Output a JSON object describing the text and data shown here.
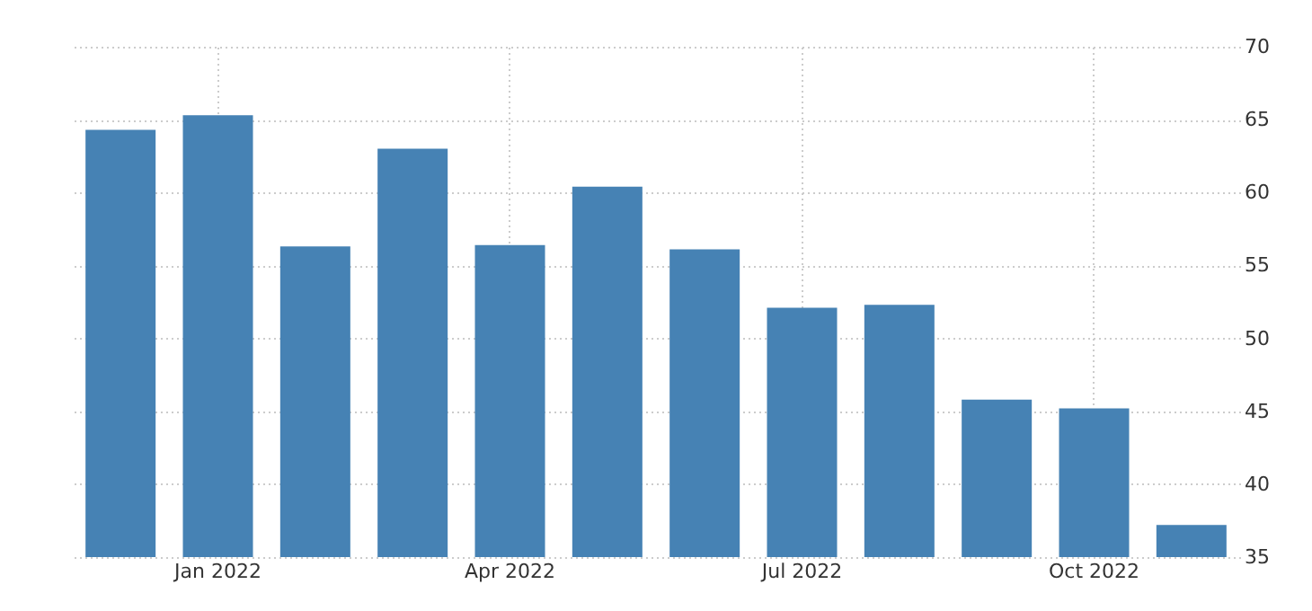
{
  "chart_data": {
    "type": "bar",
    "categories": [
      null,
      "Jan 2022",
      null,
      null,
      "Apr 2022",
      null,
      null,
      "Jul 2022",
      null,
      null,
      "Oct 2022",
      null
    ],
    "values": [
      64.3,
      65.3,
      56.3,
      63.0,
      56.4,
      60.4,
      56.1,
      52.1,
      52.3,
      45.8,
      45.2,
      37.2
    ],
    "color": "#4682b4",
    "ylim": [
      35,
      70
    ],
    "yticks": [
      35,
      40,
      45,
      50,
      55,
      60,
      65,
      70
    ],
    "grid": true
  }
}
